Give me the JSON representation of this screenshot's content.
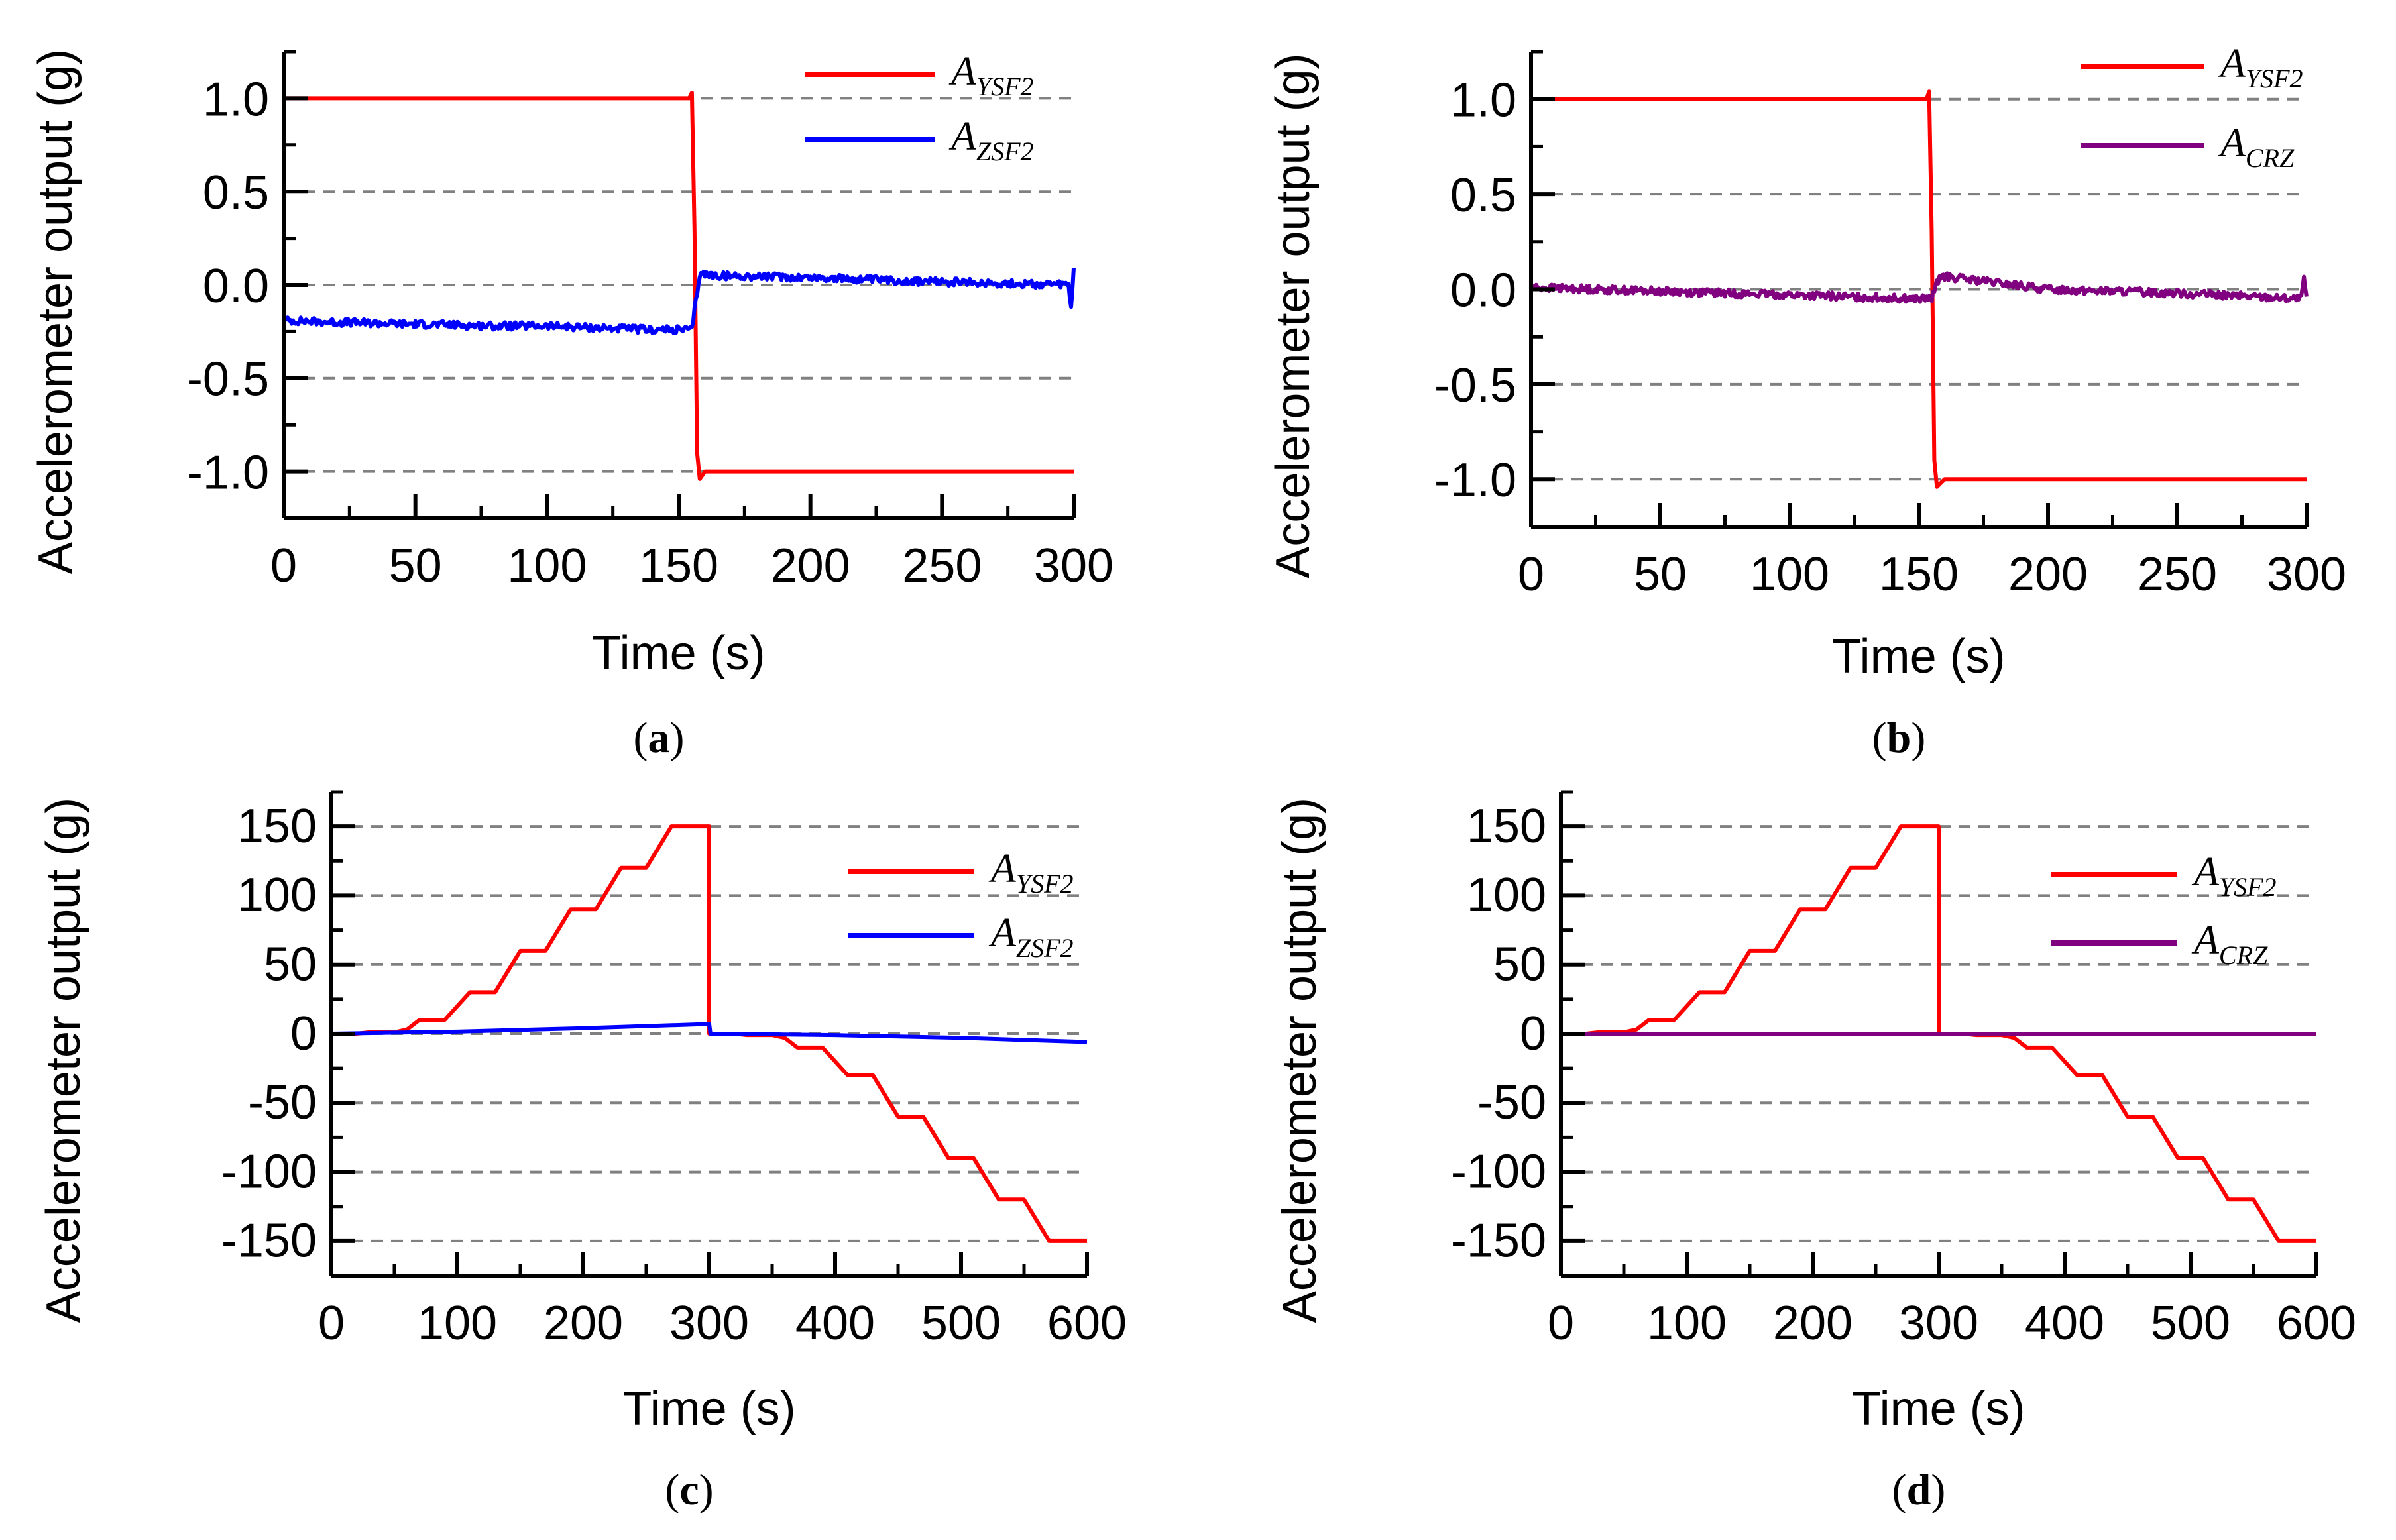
{
  "chart_data": [
    {
      "id": "a",
      "type": "line",
      "caption": "(a)",
      "xlabel": "Time (s)",
      "ylabel": "Accelerometer output (g)",
      "xlim": [
        0,
        300
      ],
      "ylim": [
        -1.25,
        1.25
      ],
      "xticks": [
        0,
        50,
        100,
        150,
        200,
        250,
        300
      ],
      "xtick_labels": [
        "0",
        "50",
        "100",
        "150",
        "200",
        "250",
        "300"
      ],
      "yticks": [
        1.0,
        0.5,
        0.0,
        -0.5,
        -1.0
      ],
      "ytick_labels": [
        "1.0",
        "0.5",
        "0.0",
        "-0.5",
        "-1.0"
      ],
      "grid_y": [
        1.0,
        0.5,
        0.0,
        -0.5,
        -1.0
      ],
      "legend_position": "top-right",
      "series": [
        {
          "name": "A",
          "subscript": "YSF2",
          "color": "#ff0000",
          "x": [
            0,
            154,
            155,
            156,
            157,
            158,
            160,
            300
          ],
          "y": [
            1.0,
            1.0,
            1.03,
            0.3,
            -0.9,
            -1.04,
            -1.0,
            -1.0
          ]
        },
        {
          "name": "A",
          "subscript": "ZSF2",
          "color": "#0000ff",
          "x": [
            0,
            20,
            50,
            80,
            100,
            120,
            140,
            155,
            158,
            165,
            200,
            240,
            270,
            298,
            299,
            300
          ],
          "y": [
            -0.19,
            -0.2,
            -0.21,
            -0.22,
            -0.22,
            -0.23,
            -0.24,
            -0.24,
            0.06,
            0.05,
            0.04,
            0.02,
            0.01,
            0.0,
            -0.12,
            0.08
          ],
          "noise": 0.02
        }
      ]
    },
    {
      "id": "b",
      "type": "line",
      "caption": "(b)",
      "xlabel": "Time (s)",
      "ylabel": "Accelerometer output (g)",
      "xlim": [
        0,
        300
      ],
      "ylim": [
        -1.25,
        1.25
      ],
      "xticks": [
        0,
        50,
        100,
        150,
        200,
        250,
        300
      ],
      "xtick_labels": [
        "0",
        "50",
        "100",
        "150",
        "200",
        "250",
        "300"
      ],
      "yticks": [
        1.0,
        0.5,
        0.0,
        -0.5,
        -1.0
      ],
      "ytick_labels": [
        "1.0",
        "0.5",
        "0.0",
        "-0.5",
        "-1.0"
      ],
      "grid_y": [
        1.0,
        0.5,
        0.0,
        -0.5,
        -1.0
      ],
      "legend_position": "top-right",
      "series": [
        {
          "name": "A",
          "subscript": "YSF2",
          "color": "#ff0000",
          "x": [
            0,
            153,
            154,
            155,
            156,
            157,
            160,
            300
          ],
          "y": [
            1.0,
            1.0,
            1.04,
            0.3,
            -0.9,
            -1.04,
            -1.0,
            -1.0
          ]
        },
        {
          "name": "A",
          "subscript": "CRZ",
          "color": "#800080",
          "x": [
            0,
            50,
            100,
            150,
            155,
            158,
            200,
            250,
            298,
            299,
            300
          ],
          "y": [
            0.01,
            -0.01,
            -0.03,
            -0.05,
            -0.05,
            0.07,
            0.0,
            -0.02,
            -0.05,
            0.05,
            -0.04
          ],
          "noise": 0.02
        }
      ]
    },
    {
      "id": "c",
      "type": "line",
      "caption": "(c)",
      "xlabel": "Time (s)",
      "ylabel": "Accelerometer output (g)",
      "xlim": [
        0,
        600
      ],
      "ylim": [
        -175,
        175
      ],
      "xticks": [
        0,
        100,
        200,
        300,
        400,
        500,
        600
      ],
      "xtick_labels": [
        "0",
        "100",
        "200",
        "300",
        "400",
        "500",
        "600"
      ],
      "yticks": [
        150,
        100,
        50,
        0,
        -50,
        -100,
        -150
      ],
      "ytick_labels": [
        "150",
        "100",
        "50",
        "0",
        "-50",
        "-100",
        "-150"
      ],
      "grid_y": [
        150,
        100,
        50,
        0,
        -50,
        -100,
        -150
      ],
      "legend_position": "top-right",
      "series": [
        {
          "name": "A",
          "subscript": "YSF2",
          "color": "#ff0000",
          "x": [
            0,
            20,
            30,
            50,
            60,
            70,
            90,
            100,
            110,
            130,
            140,
            150,
            170,
            180,
            190,
            210,
            220,
            230,
            250,
            260,
            270,
            290,
            300,
            300,
            320,
            330,
            350,
            360,
            370,
            390,
            400,
            410,
            430,
            440,
            450,
            470,
            480,
            490,
            510,
            520,
            530,
            550,
            560,
            570,
            590,
            600
          ],
          "y": [
            0,
            0,
            1,
            1,
            3,
            10,
            10,
            20,
            30,
            30,
            45,
            60,
            60,
            75,
            90,
            90,
            105,
            120,
            120,
            135,
            150,
            150,
            150,
            0,
            0,
            -1,
            -1,
            -3,
            -10,
            -10,
            -20,
            -30,
            -30,
            -45,
            -60,
            -60,
            -75,
            -90,
            -90,
            -105,
            -120,
            -120,
            -135,
            -150,
            -150,
            -150
          ]
        },
        {
          "name": "A",
          "subscript": "ZSF2",
          "color": "#0000ff",
          "x": [
            0,
            100,
            200,
            300,
            301,
            400,
            500,
            600
          ],
          "y": [
            0,
            1.5,
            4,
            7,
            0,
            -1,
            -3,
            -6
          ]
        }
      ]
    },
    {
      "id": "d",
      "type": "line",
      "caption": "(d)",
      "xlabel": "Time (s)",
      "ylabel": "Accelerometer output (g)",
      "xlim": [
        0,
        600
      ],
      "ylim": [
        -175,
        175
      ],
      "xticks": [
        0,
        100,
        200,
        300,
        400,
        500,
        600
      ],
      "xtick_labels": [
        "0",
        "100",
        "200",
        "300",
        "400",
        "500",
        "600"
      ],
      "yticks": [
        150,
        100,
        50,
        0,
        -50,
        -100,
        -150
      ],
      "ytick_labels": [
        "150",
        "100",
        "50",
        "0",
        "-50",
        "-100",
        "-150"
      ],
      "grid_y": [
        150,
        100,
        50,
        0,
        -50,
        -100,
        -150
      ],
      "legend_position": "top-right",
      "series": [
        {
          "name": "A",
          "subscript": "YSF2",
          "color": "#ff0000",
          "x": [
            0,
            20,
            30,
            50,
            60,
            70,
            90,
            100,
            110,
            130,
            140,
            150,
            170,
            180,
            190,
            210,
            220,
            230,
            250,
            260,
            270,
            290,
            300,
            300,
            320,
            330,
            350,
            360,
            370,
            390,
            400,
            410,
            430,
            440,
            450,
            470,
            480,
            490,
            510,
            520,
            530,
            550,
            560,
            570,
            590,
            600
          ],
          "y": [
            0,
            0,
            1,
            1,
            3,
            10,
            10,
            20,
            30,
            30,
            45,
            60,
            60,
            75,
            90,
            90,
            105,
            120,
            120,
            135,
            150,
            150,
            150,
            0,
            0,
            -1,
            -1,
            -3,
            -10,
            -10,
            -20,
            -30,
            -30,
            -45,
            -60,
            -60,
            -75,
            -90,
            -90,
            -105,
            -120,
            -120,
            -135,
            -150,
            -150,
            -150
          ]
        },
        {
          "name": "A",
          "subscript": "CRZ",
          "color": "#800080",
          "x": [
            0,
            600
          ],
          "y": [
            0,
            0
          ]
        }
      ]
    }
  ]
}
